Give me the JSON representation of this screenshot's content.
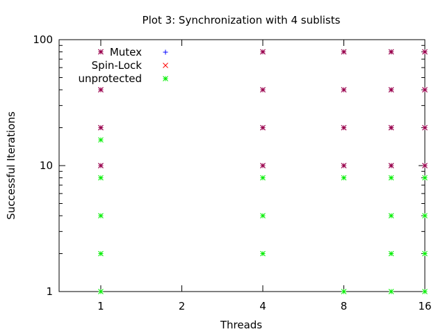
{
  "chart_data": {
    "type": "scatter",
    "title": "Plot 3: Synchronization with 4 sublists",
    "xlabel": "Threads",
    "ylabel": "Successful Iterations",
    "x_scale": "log",
    "y_scale": "log",
    "xlim": [
      0.7,
      16
    ],
    "ylim": [
      1,
      100
    ],
    "x_ticks": [
      {
        "value": 1,
        "label": "1"
      },
      {
        "value": 2,
        "label": "2"
      },
      {
        "value": 4,
        "label": "4"
      },
      {
        "value": 8,
        "label": "8"
      },
      {
        "value": 16,
        "label": "16"
      }
    ],
    "y_ticks": [
      {
        "value": 1,
        "label": "1"
      },
      {
        "value": 10,
        "label": "10"
      },
      {
        "value": 100,
        "label": "100"
      }
    ],
    "grid": false,
    "legend_position": "top-left",
    "series": [
      {
        "name": "Mutex",
        "marker": "plus",
        "color": "#0000ff",
        "points": [
          {
            "x": 1,
            "y": 10
          },
          {
            "x": 1,
            "y": 20
          },
          {
            "x": 1,
            "y": 40
          },
          {
            "x": 1,
            "y": 80
          },
          {
            "x": 4,
            "y": 10
          },
          {
            "x": 4,
            "y": 20
          },
          {
            "x": 4,
            "y": 40
          },
          {
            "x": 4,
            "y": 80
          },
          {
            "x": 8,
            "y": 10
          },
          {
            "x": 8,
            "y": 20
          },
          {
            "x": 8,
            "y": 40
          },
          {
            "x": 8,
            "y": 80
          },
          {
            "x": 12,
            "y": 10
          },
          {
            "x": 12,
            "y": 20
          },
          {
            "x": 12,
            "y": 40
          },
          {
            "x": 12,
            "y": 80
          },
          {
            "x": 16,
            "y": 10
          },
          {
            "x": 16,
            "y": 20
          },
          {
            "x": 16,
            "y": 40
          },
          {
            "x": 16,
            "y": 80
          }
        ]
      },
      {
        "name": "Spin-Lock",
        "marker": "cross",
        "color": "#ff0000",
        "points": [
          {
            "x": 1,
            "y": 10
          },
          {
            "x": 1,
            "y": 20
          },
          {
            "x": 1,
            "y": 40
          },
          {
            "x": 1,
            "y": 80
          },
          {
            "x": 4,
            "y": 10
          },
          {
            "x": 4,
            "y": 20
          },
          {
            "x": 4,
            "y": 40
          },
          {
            "x": 4,
            "y": 80
          },
          {
            "x": 8,
            "y": 10
          },
          {
            "x": 8,
            "y": 20
          },
          {
            "x": 8,
            "y": 40
          },
          {
            "x": 8,
            "y": 80
          },
          {
            "x": 12,
            "y": 10
          },
          {
            "x": 12,
            "y": 20
          },
          {
            "x": 12,
            "y": 40
          },
          {
            "x": 12,
            "y": 80
          },
          {
            "x": 16,
            "y": 10
          },
          {
            "x": 16,
            "y": 20
          },
          {
            "x": 16,
            "y": 40
          },
          {
            "x": 16,
            "y": 80
          }
        ]
      },
      {
        "name": "unprotected",
        "marker": "star",
        "color": "#00ee00",
        "points": [
          {
            "x": 1,
            "y": 1
          },
          {
            "x": 1,
            "y": 2
          },
          {
            "x": 1,
            "y": 4
          },
          {
            "x": 1,
            "y": 8
          },
          {
            "x": 1,
            "y": 16
          },
          {
            "x": 4,
            "y": 2
          },
          {
            "x": 4,
            "y": 4
          },
          {
            "x": 4,
            "y": 8
          },
          {
            "x": 8,
            "y": 1
          },
          {
            "x": 8,
            "y": 8
          },
          {
            "x": 12,
            "y": 1
          },
          {
            "x": 12,
            "y": 2
          },
          {
            "x": 12,
            "y": 4
          },
          {
            "x": 12,
            "y": 8
          },
          {
            "x": 16,
            "y": 1
          },
          {
            "x": 16,
            "y": 2
          },
          {
            "x": 16,
            "y": 4
          },
          {
            "x": 16,
            "y": 8
          }
        ]
      }
    ],
    "overlap_color": "#99004d"
  }
}
